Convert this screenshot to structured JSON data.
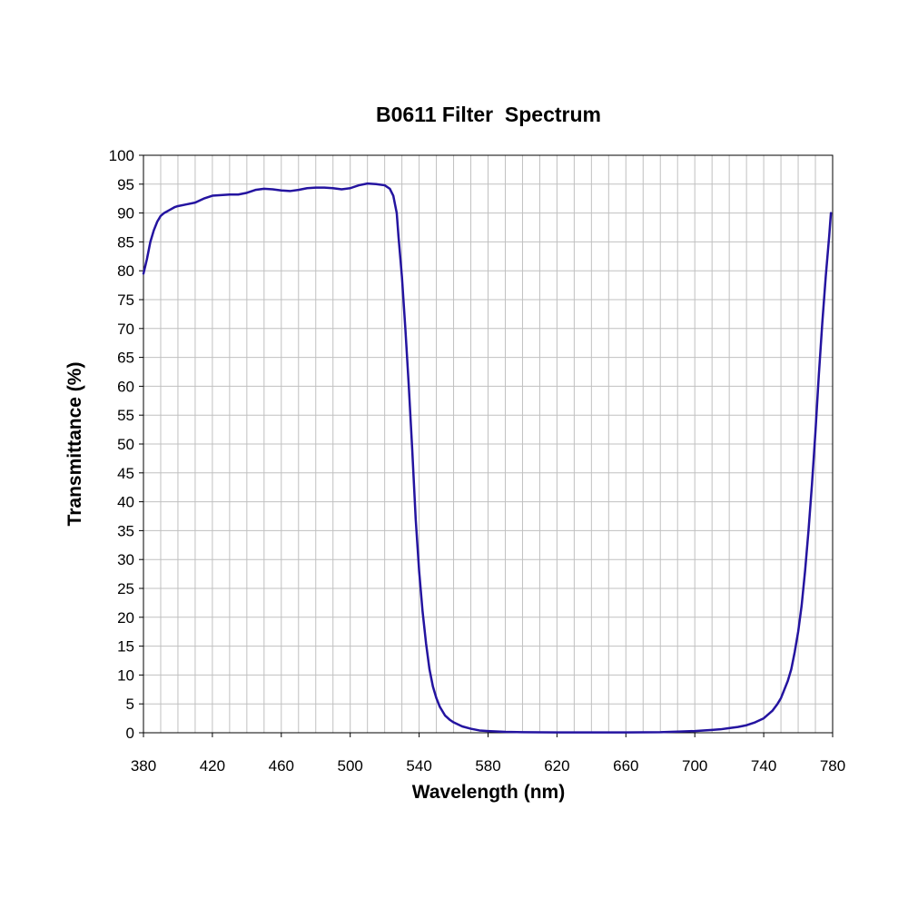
{
  "chart_data": {
    "type": "line",
    "title": "B0611 Filter  Spectrum",
    "xlabel": "Wavelength (nm)",
    "ylabel": "Transmittance (%)",
    "xlim": [
      380,
      780
    ],
    "ylim": [
      0,
      100
    ],
    "x_ticks": [
      380,
      420,
      460,
      500,
      540,
      580,
      620,
      660,
      700,
      740,
      780
    ],
    "y_ticks": [
      0,
      5,
      10,
      15,
      20,
      25,
      30,
      35,
      40,
      45,
      50,
      55,
      60,
      65,
      70,
      75,
      80,
      85,
      90,
      95,
      100
    ],
    "x_minor_step": 10,
    "y_minor_step": 5,
    "grid": true,
    "legend": "none",
    "colors": {
      "line": "#2414a0",
      "grid": "#c0c0c0",
      "frame": "#000000"
    },
    "series": [
      {
        "x": [
          380,
          382,
          384,
          386,
          388,
          390,
          392,
          395,
          398,
          400,
          405,
          410,
          415,
          420,
          425,
          430,
          435,
          440,
          445,
          450,
          455,
          460,
          465,
          470,
          475,
          480,
          485,
          490,
          495,
          500,
          505,
          510,
          515,
          520,
          523,
          525,
          527,
          528,
          530,
          532,
          534,
          536,
          538,
          540,
          542,
          544,
          546,
          548,
          550,
          552,
          555,
          558,
          560,
          565,
          570,
          575,
          580,
          590,
          600,
          620,
          640,
          660,
          680,
          690,
          700,
          705,
          710,
          715,
          720,
          725,
          730,
          735,
          740,
          745,
          748,
          750,
          752,
          754,
          756,
          758,
          760,
          762,
          764,
          766,
          768,
          770,
          772,
          774,
          776,
          778,
          779
        ],
        "y": [
          79.5,
          82,
          85,
          87,
          88.5,
          89.5,
          90,
          90.5,
          91,
          91.2,
          91.5,
          91.8,
          92.5,
          93,
          93.1,
          93.2,
          93.2,
          93.5,
          94,
          94.2,
          94.1,
          93.9,
          93.8,
          94,
          94.3,
          94.4,
          94.4,
          94.3,
          94.1,
          94.3,
          94.8,
          95.1,
          95,
          94.8,
          94.2,
          93,
          90,
          86,
          79,
          70,
          60,
          49,
          37,
          28,
          21,
          15.5,
          11,
          8,
          6,
          4.5,
          3,
          2.2,
          1.8,
          1.1,
          0.7,
          0.4,
          0.3,
          0.15,
          0.1,
          0.05,
          0.05,
          0.05,
          0.1,
          0.2,
          0.3,
          0.4,
          0.5,
          0.6,
          0.8,
          1.0,
          1.3,
          1.8,
          2.5,
          3.8,
          5,
          6,
          7.5,
          9,
          11,
          14,
          17.5,
          22,
          28,
          35,
          43,
          52,
          62,
          71,
          79,
          86,
          90
        ]
      }
    ]
  }
}
